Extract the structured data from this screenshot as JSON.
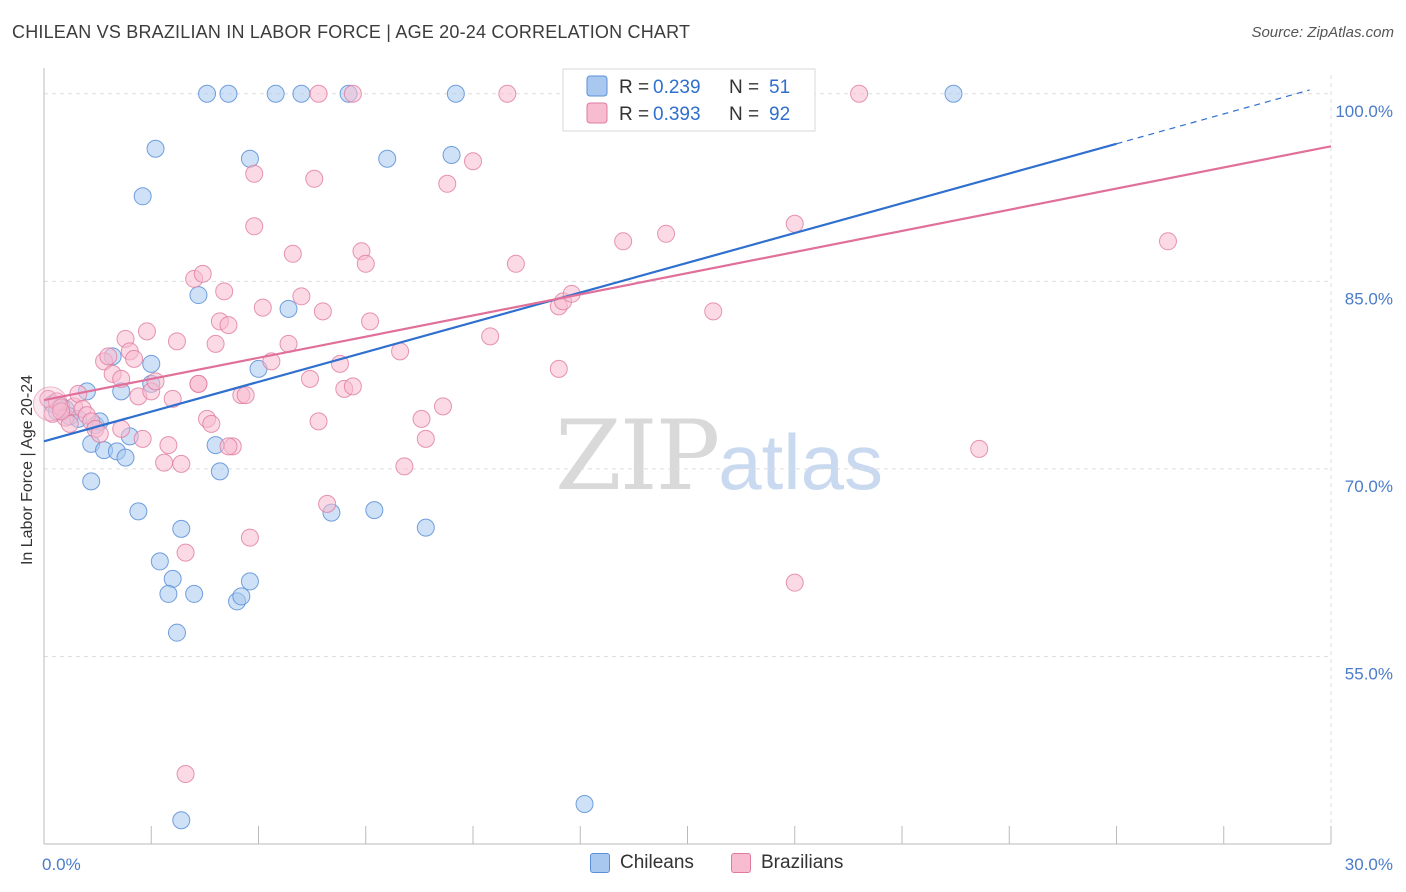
{
  "title": "CHILEAN VS BRAZILIAN IN LABOR FORCE | AGE 20-24 CORRELATION CHART",
  "source": "Source: ZipAtlas.com",
  "colors": {
    "chileans_fill": "#a8c8f0",
    "chileans_stroke": "#5b8fd6",
    "chileans_line": "#2f6fce",
    "brazilians_fill": "#f7bcd0",
    "brazilians_stroke": "#e07aa0",
    "brazilians_line": "#e0709a",
    "axis_label": "#4a7cc9",
    "grid": "#dddddd"
  },
  "legend": {
    "rows": [
      {
        "r_label": "R = ",
        "r_value": "0.239",
        "n_label": "N = ",
        "n_value": "51"
      },
      {
        "r_label": "R = ",
        "r_value": "0.393",
        "n_label": "N = ",
        "n_value": "92"
      }
    ]
  },
  "bottom_legend": {
    "chileans": "Chileans",
    "brazilians": "Brazilians"
  },
  "watermark": {
    "zip": "ZIP",
    "atlas": "atlas"
  },
  "chart_data": {
    "type": "scatter",
    "title": "CHILEAN VS BRAZILIAN IN LABOR FORCE | AGE 20-24 CORRELATION CHART",
    "xlabel": "",
    "ylabel": "In Labor Force | Age 20-24",
    "xlim": [
      0,
      30
    ],
    "ylim": [
      40,
      101.5
    ],
    "x_tick_labels": [
      {
        "value": 0,
        "label": "0.0%"
      },
      {
        "value": 30,
        "label": "30.0%"
      }
    ],
    "y_tick_labels": [
      {
        "value": 100,
        "label": "100.0%"
      },
      {
        "value": 85,
        "label": "85.0%"
      },
      {
        "value": 70,
        "label": "70.0%"
      },
      {
        "value": 55,
        "label": "55.0%"
      }
    ],
    "grid": true,
    "legend_position": "top-center",
    "series": [
      {
        "name": "Chileans",
        "r": 0.239,
        "n": 51,
        "trend": {
          "x": [
            0,
            25
          ],
          "y": [
            72.2,
            96.0
          ],
          "dashed_extension": {
            "x": [
              25,
              29.5
            ],
            "y": [
              96.0,
              100.3
            ]
          }
        },
        "points": [
          [
            0.2,
            75.2
          ],
          [
            0.3,
            74.6
          ],
          [
            0.4,
            75.0
          ],
          [
            0.5,
            74.8
          ],
          [
            0.6,
            74.2
          ],
          [
            0.8,
            74.0
          ],
          [
            1.0,
            76.2
          ],
          [
            1.2,
            73.5
          ],
          [
            1.1,
            72.0
          ],
          [
            1.4,
            71.5
          ],
          [
            1.7,
            71.4
          ],
          [
            1.9,
            70.9
          ],
          [
            1.1,
            69.0
          ],
          [
            2.0,
            72.6
          ],
          [
            1.6,
            79.0
          ],
          [
            1.8,
            76.2
          ],
          [
            2.5,
            76.8
          ],
          [
            2.5,
            78.4
          ],
          [
            2.2,
            66.6
          ],
          [
            2.7,
            62.6
          ],
          [
            3.0,
            61.2
          ],
          [
            2.9,
            60.0
          ],
          [
            3.2,
            65.2
          ],
          [
            3.5,
            60.0
          ],
          [
            3.1,
            56.9
          ],
          [
            4.0,
            71.9
          ],
          [
            4.1,
            69.8
          ],
          [
            4.5,
            59.4
          ],
          [
            4.6,
            59.8
          ],
          [
            4.8,
            61.0
          ],
          [
            3.6,
            83.9
          ],
          [
            4.8,
            94.8
          ],
          [
            2.3,
            91.8
          ],
          [
            2.6,
            95.6
          ],
          [
            3.8,
            100.0
          ],
          [
            4.3,
            100.0
          ],
          [
            5.4,
            100.0
          ],
          [
            6.0,
            100.0
          ],
          [
            7.1,
            100.0
          ],
          [
            9.6,
            100.0
          ],
          [
            21.2,
            100.0
          ],
          [
            9.5,
            95.1
          ],
          [
            8.0,
            94.8
          ],
          [
            5.7,
            82.8
          ],
          [
            5.0,
            78.0
          ],
          [
            6.7,
            66.5
          ],
          [
            7.7,
            66.7
          ],
          [
            8.9,
            65.3
          ],
          [
            12.6,
            43.2
          ],
          [
            3.2,
            41.9
          ],
          [
            1.3,
            73.8
          ]
        ]
      },
      {
        "name": "Brazilians",
        "r": 0.393,
        "n": 92,
        "trend": {
          "x": [
            0,
            30
          ],
          "y": [
            75.5,
            95.8
          ]
        },
        "points": [
          [
            0.1,
            75.6
          ],
          [
            0.2,
            74.4
          ],
          [
            0.3,
            75.4
          ],
          [
            0.4,
            74.9
          ],
          [
            0.5,
            74.1
          ],
          [
            0.6,
            73.6
          ],
          [
            0.7,
            75.0
          ],
          [
            0.8,
            76.0
          ],
          [
            0.9,
            74.8
          ],
          [
            1.0,
            74.3
          ],
          [
            1.1,
            73.8
          ],
          [
            1.2,
            73.2
          ],
          [
            1.3,
            72.8
          ],
          [
            1.4,
            78.6
          ],
          [
            1.5,
            79.0
          ],
          [
            1.6,
            77.6
          ],
          [
            1.8,
            77.2
          ],
          [
            1.9,
            80.4
          ],
          [
            2.0,
            79.4
          ],
          [
            2.1,
            78.8
          ],
          [
            2.2,
            75.8
          ],
          [
            2.3,
            72.4
          ],
          [
            2.5,
            76.2
          ],
          [
            2.6,
            77.0
          ],
          [
            2.4,
            81.0
          ],
          [
            2.8,
            70.5
          ],
          [
            2.9,
            71.9
          ],
          [
            3.0,
            75.6
          ],
          [
            3.1,
            80.2
          ],
          [
            3.2,
            70.4
          ],
          [
            3.3,
            63.3
          ],
          [
            3.5,
            85.2
          ],
          [
            3.7,
            85.6
          ],
          [
            3.6,
            76.8
          ],
          [
            3.8,
            74.0
          ],
          [
            3.9,
            73.6
          ],
          [
            4.0,
            80.0
          ],
          [
            4.1,
            81.8
          ],
          [
            4.2,
            84.2
          ],
          [
            4.3,
            81.5
          ],
          [
            4.4,
            71.8
          ],
          [
            4.6,
            75.9
          ],
          [
            4.7,
            75.9
          ],
          [
            4.8,
            64.5
          ],
          [
            4.9,
            89.4
          ],
          [
            5.1,
            82.9
          ],
          [
            5.3,
            78.6
          ],
          [
            5.7,
            80.0
          ],
          [
            5.8,
            87.2
          ],
          [
            6.0,
            83.8
          ],
          [
            6.2,
            77.2
          ],
          [
            6.3,
            93.2
          ],
          [
            6.4,
            73.8
          ],
          [
            6.5,
            82.6
          ],
          [
            6.6,
            67.2
          ],
          [
            6.9,
            78.4
          ],
          [
            7.0,
            76.4
          ],
          [
            7.2,
            76.6
          ],
          [
            7.4,
            87.4
          ],
          [
            7.5,
            86.4
          ],
          [
            7.6,
            81.8
          ],
          [
            8.3,
            79.4
          ],
          [
            8.4,
            70.2
          ],
          [
            8.8,
            74.0
          ],
          [
            8.9,
            72.4
          ],
          [
            9.3,
            75.0
          ],
          [
            9.4,
            92.8
          ],
          [
            10.0,
            94.6
          ],
          [
            10.4,
            80.6
          ],
          [
            11.0,
            86.4
          ],
          [
            12.0,
            83.0
          ],
          [
            12.1,
            83.4
          ],
          [
            12.3,
            84.0
          ],
          [
            12.0,
            78.0
          ],
          [
            13.5,
            88.2
          ],
          [
            14.5,
            88.8
          ],
          [
            15.6,
            82.6
          ],
          [
            17.5,
            89.6
          ],
          [
            17.5,
            60.9
          ],
          [
            19.0,
            100.0
          ],
          [
            21.8,
            71.6
          ],
          [
            26.2,
            88.2
          ],
          [
            7.2,
            100.0
          ],
          [
            10.8,
            100.0
          ],
          [
            15.9,
            100.0
          ],
          [
            6.4,
            100.0
          ],
          [
            3.3,
            45.6
          ],
          [
            4.9,
            93.6
          ],
          [
            3.6,
            76.8
          ],
          [
            4.3,
            71.8
          ],
          [
            1.8,
            73.2
          ],
          [
            0.4,
            74.6
          ]
        ]
      }
    ]
  }
}
